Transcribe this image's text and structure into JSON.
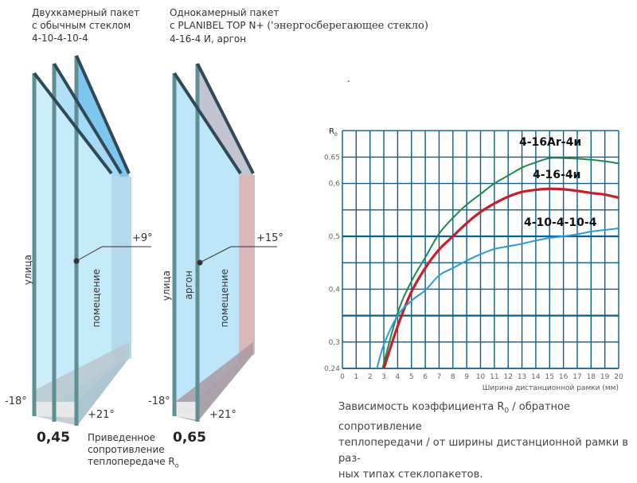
{
  "left_unit": {
    "title_lines": [
      "Двухкамерный пакет",
      "с обычным стеклом",
      "4-10-4-10-4"
    ],
    "outside_label": "улица",
    "room_label": "помещение",
    "outside_temp": "-18°",
    "inner_surface_temp": "+9°",
    "room_temp": "+21°",
    "r_value": "0,45",
    "glass_color": "#8fd0f0"
  },
  "right_unit": {
    "title_line1": "Однокамерный пакет",
    "title_line2_a": "с PLANIBEL TOP N+ (",
    "title_line2_b": "'энергосберегающее стекло)",
    "title_line3": "4-16-4 И, аргон",
    "outside_label": "улица",
    "gas_label": "аргон",
    "room_label": "помещение",
    "outside_temp": "-18°",
    "inner_surface_temp": "+15°",
    "room_temp": "+21°",
    "r_value": "0,65",
    "glass_color": "#c9c9d6"
  },
  "r_caption": {
    "line1": "Приведенное",
    "line2": "сопротивление",
    "line3": "теплопередаче R",
    "sub": "o"
  },
  "dot_mark": ".",
  "chart_data": {
    "type": "line",
    "ylabel": "R",
    "ylabel_sub": "0",
    "xlabel": "Ширина дистанционной рамки (мм)",
    "xlim": [
      0,
      20
    ],
    "ylim": [
      0.24,
      0.7
    ],
    "x_ticks": [
      "0",
      "1",
      "2",
      "3",
      "4",
      "5",
      "6",
      "7",
      "8",
      "9",
      "10",
      "11",
      "12",
      "13",
      "14",
      "15",
      "16",
      "17",
      "18",
      "19",
      "20"
    ],
    "y_ticks": [
      {
        "value": 0.24,
        "label": "0,24"
      },
      {
        "value": 0.3,
        "label": "0,3"
      },
      {
        "value": 0.4,
        "label": "0,4"
      },
      {
        "value": 0.5,
        "label": "0,5"
      },
      {
        "value": 0.6,
        "label": "0,6"
      },
      {
        "value": 0.65,
        "label": "0,65"
      }
    ],
    "grid": true,
    "grid_color": "#0d5c8c",
    "series": [
      {
        "name": "4-16Ar-4и",
        "color": "#1e8a4a",
        "x": [
          2.9,
          4,
          5,
          6,
          7,
          8,
          9,
          10,
          11,
          12,
          13,
          14,
          15,
          16,
          17,
          18,
          19,
          20
        ],
        "y": [
          0.24,
          0.355,
          0.415,
          0.46,
          0.505,
          0.535,
          0.56,
          0.58,
          0.6,
          0.615,
          0.63,
          0.64,
          0.648,
          0.648,
          0.647,
          0.645,
          0.642,
          0.638
        ]
      },
      {
        "name": "4-16-4и",
        "color": "#c81e2a",
        "x": [
          3,
          4,
          5,
          6,
          7,
          8,
          9,
          10,
          11,
          12,
          13,
          14,
          15,
          16,
          17,
          18,
          19,
          20
        ],
        "y": [
          0.24,
          0.33,
          0.395,
          0.44,
          0.475,
          0.5,
          0.525,
          0.546,
          0.562,
          0.575,
          0.584,
          0.588,
          0.59,
          0.589,
          0.586,
          0.582,
          0.579,
          0.573
        ]
      },
      {
        "name": "4-10-4-10-4",
        "color": "#2b9bd6",
        "x": [
          2.5,
          3,
          4,
          5,
          6,
          7,
          8,
          9,
          10,
          11,
          12,
          13,
          14,
          15,
          16,
          17,
          18,
          19,
          20
        ],
        "y": [
          0.24,
          0.295,
          0.35,
          0.378,
          0.398,
          0.426,
          0.44,
          0.454,
          0.466,
          0.476,
          0.481,
          0.486,
          0.492,
          0.497,
          0.5,
          0.504,
          0.509,
          0.512,
          0.515
        ]
      }
    ],
    "caption_line1": "Зависимость коэффициента R",
    "caption_sub": "0",
    "caption_line1_rest": " / обратное сопротивление",
    "caption_line2": "теплопередачи / от ширины дистанционной рамки в раз-",
    "caption_line3": "ных типах стеклопакетов."
  }
}
